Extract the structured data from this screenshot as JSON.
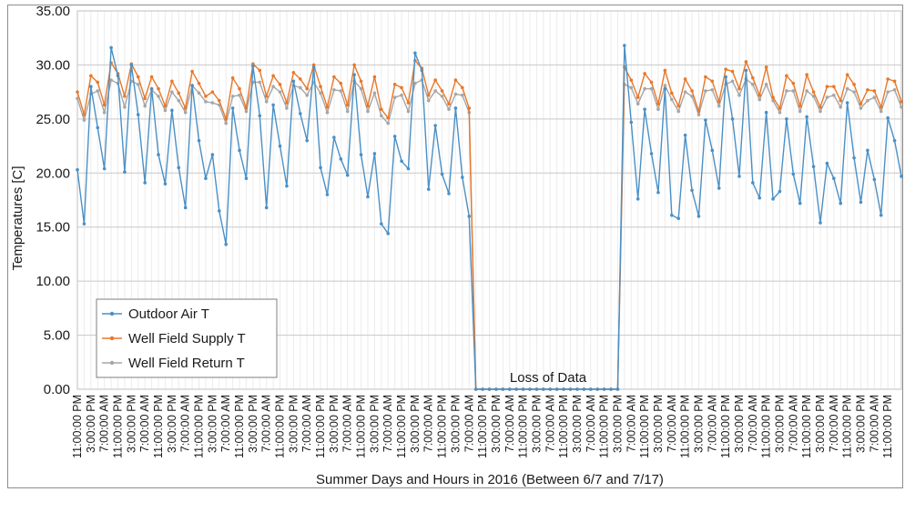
{
  "chart_data": {
    "type": "line",
    "title": "",
    "xlabel": "Summer Days and Hours in 2016 (Between 6/7 and 7/17)",
    "ylabel": "Temperatures [C]",
    "ylim": [
      0,
      35
    ],
    "yticks": [
      "0.00",
      "5.00",
      "10.00",
      "15.00",
      "20.00",
      "25.00",
      "30.00",
      "35.00"
    ],
    "grid": true,
    "legend_position": "bottom-left",
    "annotation": "Loss of Data",
    "x_tick_labels": [
      "11:00:00 PM",
      "3:00:00 PM",
      "7:00:00 AM",
      "11:00:00 PM",
      "3:00:00 PM",
      "7:00:00 AM",
      "11:00:00 PM",
      "3:00:00 PM",
      "7:00:00 AM",
      "11:00:00 PM",
      "3:00:00 PM",
      "7:00:00 AM",
      "11:00:00 PM",
      "3:00:00 PM",
      "7:00:00 AM",
      "11:00:00 PM",
      "3:00:00 PM",
      "7:00:00 AM",
      "11:00:00 PM",
      "3:00:00 PM",
      "7:00:00 AM",
      "11:00:00 PM",
      "3:00:00 PM",
      "7:00:00 AM",
      "11:00:00 PM",
      "3:00:00 PM",
      "7:00:00 AM",
      "11:00:00 PM",
      "3:00:00 PM",
      "7:00:00 AM",
      "11:00:00 PM",
      "3:00:00 PM",
      "7:00:00 AM",
      "11:00:00 PM",
      "3:00:00 PM",
      "7:00:00 AM",
      "11:00:00 PM",
      "3:00:00 PM",
      "7:00:00 AM",
      "11:00:00 PM",
      "3:00:00 PM",
      "7:00:00 AM",
      "11:00:00 PM",
      "3:00:00 PM",
      "7:00:00 AM",
      "11:00:00 PM",
      "3:00:00 PM",
      "7:00:00 AM",
      "11:00:00 PM",
      "3:00:00 PM",
      "7:00:00 AM",
      "11:00:00 PM",
      "3:00:00 PM",
      "7:00:00 AM",
      "11:00:00 PM",
      "3:00:00 PM",
      "7:00:00 AM",
      "11:00:00 PM",
      "3:00:00 PM",
      "7:00:00 AM",
      "11:00:00 PM"
    ],
    "series": [
      {
        "name": "Outdoor Air T",
        "color": "#4a90c6",
        "values": [
          20.3,
          15.3,
          28.0,
          24.2,
          20.4,
          31.6,
          29.0,
          20.1,
          30.0,
          25.4,
          19.1,
          27.8,
          21.7,
          19.0,
          25.8,
          20.5,
          16.8,
          28.1,
          23.0,
          19.5,
          21.7,
          16.5,
          13.4,
          26.0,
          22.1,
          19.5,
          29.9,
          25.3,
          16.8,
          26.3,
          22.5,
          18.8,
          28.5,
          25.5,
          23.0,
          29.8,
          20.5,
          18.0,
          23.3,
          21.3,
          19.8,
          29.1,
          21.7,
          17.8,
          21.8,
          15.3,
          14.4,
          23.4,
          21.1,
          20.4,
          31.1,
          29.5,
          18.5,
          24.4,
          19.9,
          18.1,
          26.0,
          19.6,
          16.0,
          0,
          0,
          0,
          0,
          0,
          0,
          0,
          0,
          0,
          0,
          0,
          0,
          0,
          0,
          0,
          0,
          0,
          0,
          0,
          0,
          0,
          0,
          31.8,
          24.7,
          17.6,
          25.9,
          21.8,
          18.2,
          27.8,
          16.1,
          15.8,
          23.5,
          18.4,
          16.0,
          24.9,
          22.1,
          18.6,
          28.9,
          25.0,
          19.7,
          29.5,
          19.1,
          17.7,
          25.6,
          17.6,
          18.3,
          25.0,
          19.9,
          17.2,
          25.2,
          20.6,
          15.4,
          20.9,
          19.5,
          17.2,
          26.5,
          21.4,
          17.3,
          22.1,
          19.4,
          16.1,
          25.1,
          23.0,
          19.7
        ]
      },
      {
        "name": "Well Field Supply T",
        "color": "#e8782a",
        "values": [
          27.5,
          25.4,
          29.0,
          28.4,
          26.3,
          30.2,
          29.2,
          27.1,
          30.1,
          28.9,
          26.9,
          28.9,
          27.8,
          26.2,
          28.5,
          27.4,
          26.0,
          29.4,
          28.3,
          27.1,
          27.5,
          26.7,
          25.0,
          28.8,
          27.8,
          26.0,
          30.1,
          29.5,
          27.1,
          29.0,
          28.2,
          26.5,
          29.3,
          28.7,
          27.8,
          30.0,
          28.0,
          26.1,
          28.9,
          28.3,
          26.3,
          30.0,
          28.5,
          26.2,
          28.9,
          25.9,
          25.1,
          28.2,
          27.9,
          26.5,
          30.4,
          29.7,
          27.2,
          28.6,
          27.6,
          26.4,
          28.6,
          27.9,
          26.0,
          0,
          0,
          0,
          0,
          0,
          0,
          0,
          0,
          0,
          0,
          0,
          0,
          0,
          0,
          0,
          0,
          0,
          0,
          0,
          0,
          0,
          0,
          29.8,
          28.6,
          27.0,
          29.2,
          28.4,
          26.4,
          29.5,
          27.4,
          26.2,
          28.7,
          27.6,
          25.7,
          28.9,
          28.5,
          26.6,
          29.6,
          29.4,
          27.8,
          30.3,
          28.8,
          27.2,
          29.8,
          27.0,
          26.0,
          29.0,
          28.3,
          26.2,
          29.1,
          27.5,
          26.1,
          28.0,
          28.0,
          26.7,
          29.1,
          28.2,
          26.4,
          27.7,
          27.6,
          26.1,
          28.7,
          28.5,
          26.6
        ]
      },
      {
        "name": "Well Field Return T",
        "color": "#a6a6a6",
        "values": [
          26.9,
          24.9,
          27.3,
          27.6,
          25.6,
          28.6,
          28.3,
          26.1,
          28.5,
          28.2,
          26.2,
          27.7,
          27.1,
          25.8,
          27.5,
          26.7,
          25.6,
          28.1,
          27.4,
          26.6,
          26.5,
          26.3,
          24.6,
          27.1,
          27.2,
          25.7,
          28.4,
          28.4,
          26.6,
          28.0,
          27.5,
          26.0,
          28.1,
          27.9,
          27.2,
          28.4,
          27.4,
          25.6,
          27.7,
          27.6,
          25.7,
          28.5,
          27.8,
          25.7,
          27.4,
          25.3,
          24.6,
          27.0,
          27.2,
          25.7,
          28.3,
          28.6,
          26.7,
          27.6,
          27.1,
          25.9,
          27.3,
          27.2,
          25.6,
          0,
          0,
          0,
          0,
          0,
          0,
          0,
          0,
          0,
          0,
          0,
          0,
          0,
          0,
          0,
          0,
          0,
          0,
          0,
          0,
          0,
          0,
          28.2,
          27.9,
          26.4,
          27.8,
          27.8,
          25.9,
          28.1,
          26.8,
          25.7,
          27.5,
          27.1,
          25.4,
          27.6,
          27.7,
          26.2,
          28.2,
          28.5,
          27.2,
          28.7,
          28.2,
          26.8,
          28.2,
          26.7,
          25.6,
          27.6,
          27.6,
          25.7,
          27.6,
          27.1,
          25.7,
          27.0,
          27.2,
          26.1,
          27.8,
          27.5,
          26.0,
          26.7,
          27.0,
          25.7,
          27.5,
          27.7,
          26.1
        ]
      }
    ]
  }
}
